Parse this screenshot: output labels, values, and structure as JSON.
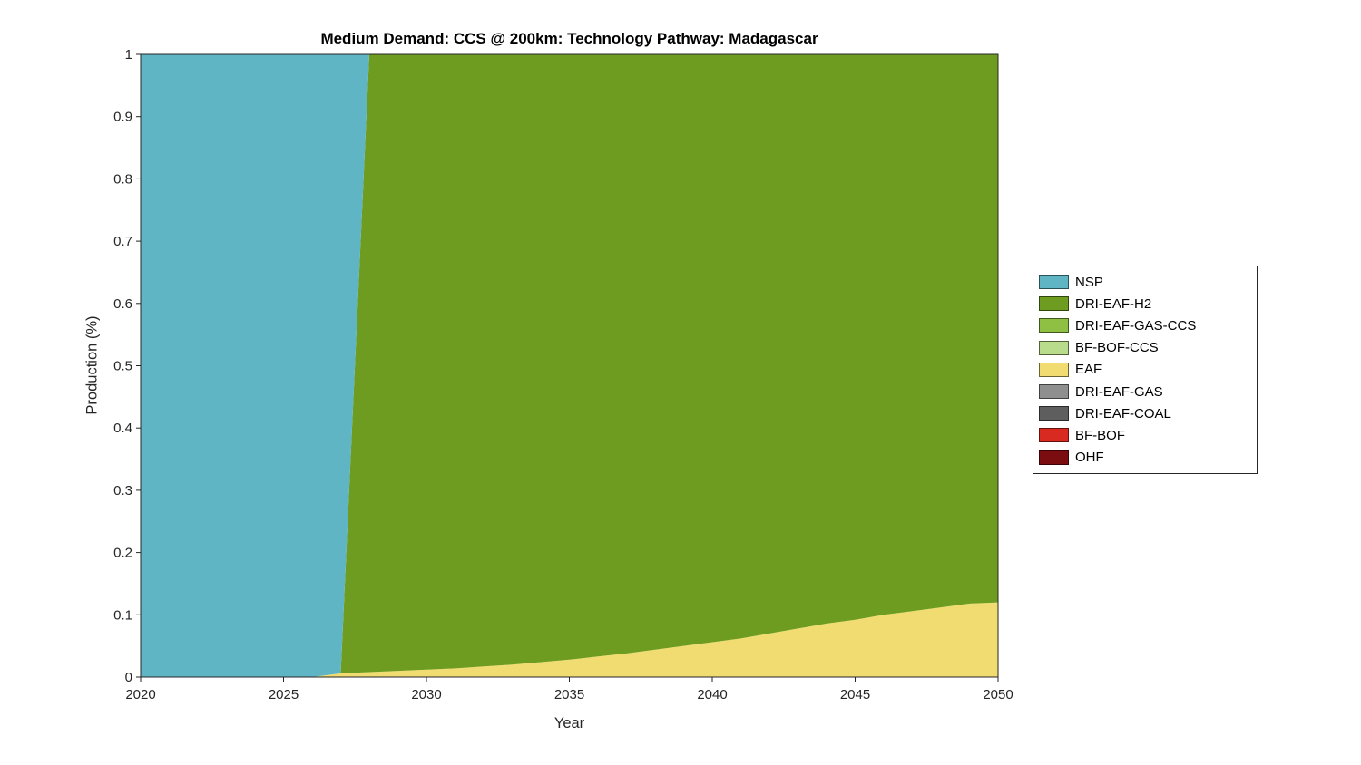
{
  "figure": {
    "background": "#ffffff",
    "axis_color": "#262626",
    "text_color": "#262626"
  },
  "chart_data": {
    "type": "area",
    "stacked": true,
    "title": "Medium Demand: CCS @ 200km: Technology Pathway: Madagascar",
    "xlabel": "Year",
    "ylabel": "Production (%)",
    "xlim": [
      2020,
      2050
    ],
    "ylim": [
      0,
      1
    ],
    "x_ticks": [
      2020,
      2025,
      2030,
      2035,
      2040,
      2045,
      2050
    ],
    "y_ticks": [
      0,
      0.1,
      0.2,
      0.3,
      0.4,
      0.5,
      0.6,
      0.7,
      0.8,
      0.9,
      1
    ],
    "y_tick_labels": [
      "0",
      "0.1",
      "0.2",
      "0.3",
      "0.4",
      "0.5",
      "0.6",
      "0.7",
      "0.8",
      "0.9",
      "1"
    ],
    "grid": false,
    "legend_position": "right-outside",
    "stacking_note": "series listed in legend order; stacked bottom-to-top in reverse of this order",
    "x": [
      2020,
      2021,
      2022,
      2023,
      2024,
      2025,
      2026,
      2027,
      2028,
      2029,
      2030,
      2031,
      2032,
      2033,
      2034,
      2035,
      2036,
      2037,
      2038,
      2039,
      2040,
      2041,
      2042,
      2043,
      2044,
      2045,
      2046,
      2047,
      2048,
      2049,
      2050
    ],
    "series": [
      {
        "name": "NSP",
        "color": "#60b5c4",
        "values": [
          1,
          1,
          1,
          1,
          1,
          1,
          1,
          0.994,
          0,
          0,
          0,
          0,
          0,
          0,
          0,
          0,
          0,
          0,
          0,
          0,
          0,
          0,
          0,
          0,
          0,
          0,
          0,
          0,
          0,
          0,
          0
        ]
      },
      {
        "name": "DRI-EAF-H2",
        "color": "#6d9c20",
        "values": [
          0,
          0,
          0,
          0,
          0,
          0,
          0,
          0,
          0.992,
          0.99,
          0.988,
          0.986,
          0.983,
          0.98,
          0.976,
          0.972,
          0.967,
          0.962,
          0.956,
          0.95,
          0.944,
          0.938,
          0.93,
          0.922,
          0.914,
          0.908,
          0.9,
          0.894,
          0.888,
          0.882,
          0.88
        ]
      },
      {
        "name": "DRI-EAF-GAS-CCS",
        "color": "#8fc044",
        "values": [
          0,
          0,
          0,
          0,
          0,
          0,
          0,
          0,
          0,
          0,
          0,
          0,
          0,
          0,
          0,
          0,
          0,
          0,
          0,
          0,
          0,
          0,
          0,
          0,
          0,
          0,
          0,
          0,
          0,
          0,
          0
        ]
      },
      {
        "name": "BF-BOF-CCS",
        "color": "#b8dc8c",
        "values": [
          0,
          0,
          0,
          0,
          0,
          0,
          0,
          0,
          0,
          0,
          0,
          0,
          0,
          0,
          0,
          0,
          0,
          0,
          0,
          0,
          0,
          0,
          0,
          0,
          0,
          0,
          0,
          0,
          0,
          0,
          0
        ]
      },
      {
        "name": "EAF",
        "color": "#f0dc70",
        "values": [
          0,
          0,
          0,
          0,
          0,
          0,
          0,
          0.006,
          0.008,
          0.01,
          0.012,
          0.014,
          0.017,
          0.02,
          0.024,
          0.028,
          0.033,
          0.038,
          0.044,
          0.05,
          0.056,
          0.062,
          0.07,
          0.078,
          0.086,
          0.092,
          0.1,
          0.106,
          0.112,
          0.118,
          0.12
        ]
      },
      {
        "name": "DRI-EAF-GAS",
        "color": "#8f8f8f",
        "values": [
          0,
          0,
          0,
          0,
          0,
          0,
          0,
          0,
          0,
          0,
          0,
          0,
          0,
          0,
          0,
          0,
          0,
          0,
          0,
          0,
          0,
          0,
          0,
          0,
          0,
          0,
          0,
          0,
          0,
          0,
          0
        ]
      },
      {
        "name": "DRI-EAF-COAL",
        "color": "#5e5e5e",
        "values": [
          0,
          0,
          0,
          0,
          0,
          0,
          0,
          0,
          0,
          0,
          0,
          0,
          0,
          0,
          0,
          0,
          0,
          0,
          0,
          0,
          0,
          0,
          0,
          0,
          0,
          0,
          0,
          0,
          0,
          0,
          0
        ]
      },
      {
        "name": "BF-BOF",
        "color": "#d92a21",
        "values": [
          0,
          0,
          0,
          0,
          0,
          0,
          0,
          0,
          0,
          0,
          0,
          0,
          0,
          0,
          0,
          0,
          0,
          0,
          0,
          0,
          0,
          0,
          0,
          0,
          0,
          0,
          0,
          0,
          0,
          0,
          0
        ]
      },
      {
        "name": "OHF",
        "color": "#7b0c10",
        "values": [
          0,
          0,
          0,
          0,
          0,
          0,
          0,
          0,
          0,
          0,
          0,
          0,
          0,
          0,
          0,
          0,
          0,
          0,
          0,
          0,
          0,
          0,
          0,
          0,
          0,
          0,
          0,
          0,
          0,
          0,
          0
        ]
      }
    ]
  }
}
